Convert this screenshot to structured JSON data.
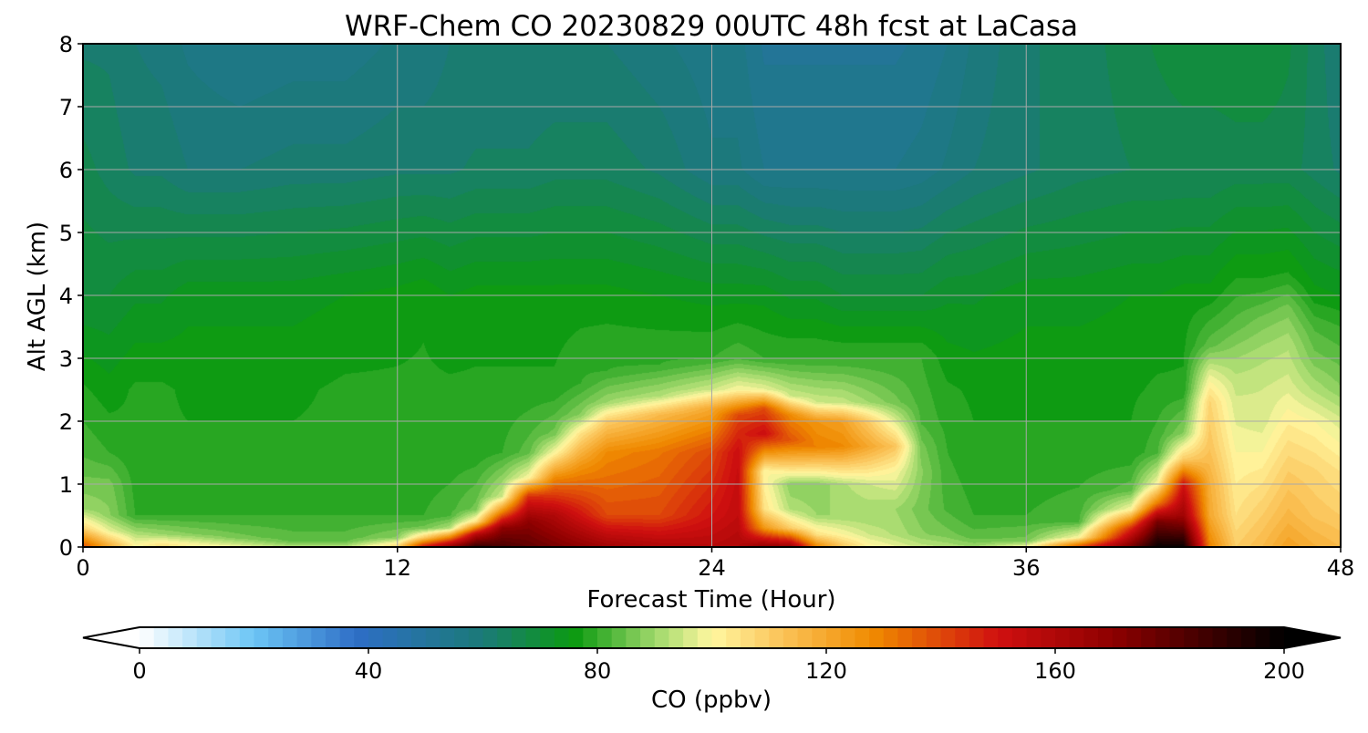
{
  "chart_data": {
    "type": "heatmap",
    "subtype": "filled-contour time-height cross-section",
    "title": "WRF-Chem CO  20230829 00UTC 48h fcst at LaCasa",
    "xlabel": "Forecast Time (Hour)",
    "ylabel": "Alt AGL (km)",
    "xlim": [
      0,
      48
    ],
    "ylim": [
      0,
      8
    ],
    "xticks": [
      0,
      12,
      24,
      36,
      48
    ],
    "yticks": [
      0,
      1,
      2,
      3,
      4,
      5,
      6,
      7,
      8
    ],
    "grid": true,
    "colorbar": {
      "label": "CO  (ppbv)",
      "min": 0,
      "max": 200,
      "ticks": [
        0,
        40,
        80,
        120,
        160,
        200
      ],
      "extend": "both",
      "orientation": "horizontal",
      "placement": "bottom",
      "stops": [
        {
          "v": 0,
          "c": "#ffffff"
        },
        {
          "v": 20,
          "c": "#6cc5f5"
        },
        {
          "v": 38,
          "c": "#2e6ec6"
        },
        {
          "v": 60,
          "c": "#1b7a78"
        },
        {
          "v": 76,
          "c": "#0b9a10"
        },
        {
          "v": 90,
          "c": "#9ed86a"
        },
        {
          "v": 100,
          "c": "#fff7a0"
        },
        {
          "v": 112,
          "c": "#fbc45a"
        },
        {
          "v": 128,
          "c": "#f08b00"
        },
        {
          "v": 150,
          "c": "#d01010"
        },
        {
          "v": 170,
          "c": "#8e0000"
        },
        {
          "v": 190,
          "c": "#2e0000"
        },
        {
          "v": 200,
          "c": "#000000"
        }
      ]
    },
    "sample_hours": [
      0,
      1,
      2,
      3,
      4,
      6,
      8,
      10,
      12,
      13,
      14,
      15,
      16,
      17,
      18,
      19,
      20,
      22,
      24,
      25,
      26,
      27,
      28,
      29,
      30,
      31,
      32,
      33,
      34,
      36,
      38,
      40,
      41,
      42,
      43,
      44,
      45,
      46,
      47,
      48
    ],
    "profiles": [
      {
        "h": 0,
        "z": [
          0,
          0.3,
          0.6,
          1.0,
          1.5,
          2.5,
          4,
          6,
          8
        ],
        "co": [
          140,
          108,
          90,
          86,
          82,
          78,
          70,
          66,
          62
        ]
      },
      {
        "h": 1,
        "z": [
          0,
          0.25,
          0.5,
          1.0,
          1.5,
          2.5,
          4,
          6,
          8
        ],
        "co": [
          120,
          98,
          88,
          86,
          80,
          76,
          70,
          64,
          62
        ]
      },
      {
        "h": 2,
        "z": [
          0,
          0.25,
          0.5,
          1.5,
          2.5,
          4,
          6,
          8
        ],
        "co": [
          102,
          90,
          80,
          78,
          78,
          72,
          62,
          60
        ]
      },
      {
        "h": 3,
        "z": [
          0,
          0.2,
          0.5,
          1.5,
          2.5,
          4,
          6,
          8
        ],
        "co": [
          108,
          90,
          80,
          78,
          78,
          72,
          62,
          59
        ]
      },
      {
        "h": 4,
        "z": [
          0,
          0.2,
          0.5,
          1.5,
          2.5,
          4,
          6,
          8
        ],
        "co": [
          104,
          88,
          80,
          78,
          77,
          74,
          60,
          57
        ]
      },
      {
        "h": 6,
        "z": [
          0,
          0.15,
          0.5,
          1.5,
          2.5,
          4,
          6,
          8
        ],
        "co": [
          98,
          86,
          80,
          78,
          77,
          74,
          60,
          55
        ]
      },
      {
        "h": 8,
        "z": [
          0,
          0.1,
          0.5,
          1.5,
          2.5,
          4,
          6,
          8
        ],
        "co": [
          92,
          84,
          80,
          78,
          77,
          74,
          61,
          56
        ]
      },
      {
        "h": 10,
        "z": [
          0,
          0.1,
          0.5,
          1.5,
          2.5,
          4,
          6,
          8
        ],
        "co": [
          92,
          84,
          80,
          78,
          78,
          75,
          61,
          56
        ]
      },
      {
        "h": 12,
        "z": [
          0,
          0.15,
          0.5,
          1.5,
          2.5,
          4,
          6,
          8
        ],
        "co": [
          110,
          88,
          80,
          78,
          78,
          76,
          62,
          58
        ]
      },
      {
        "h": 13,
        "z": [
          0,
          0.15,
          0.3,
          0.5,
          1.5,
          2.5,
          4,
          6,
          8
        ],
        "co": [
          150,
          110,
          86,
          80,
          78,
          78,
          77,
          62,
          58
        ]
      },
      {
        "h": 14,
        "z": [
          0,
          0.15,
          0.3,
          0.5,
          1.5,
          2.5,
          4,
          6,
          8
        ],
        "co": [
          170,
          130,
          92,
          82,
          78,
          78,
          75,
          62,
          60
        ]
      },
      {
        "h": 15,
        "z": [
          0,
          0.2,
          0.4,
          0.6,
          1.5,
          2.5,
          4,
          6,
          8
        ],
        "co": [
          190,
          158,
          105,
          86,
          78,
          78,
          76,
          63,
          60
        ]
      },
      {
        "h": 16,
        "z": [
          0,
          0.3,
          0.55,
          0.8,
          1.5,
          2.5,
          4,
          6,
          8
        ],
        "co": [
          185,
          170,
          130,
          95,
          80,
          78,
          76,
          63,
          60
        ]
      },
      {
        "h": 17,
        "z": [
          0,
          0.4,
          0.8,
          1.1,
          1.5,
          2.5,
          4,
          6,
          8
        ],
        "co": [
          180,
          170,
          145,
          100,
          84,
          78,
          76,
          63,
          60
        ]
      },
      {
        "h": 18,
        "z": [
          0,
          0.5,
          1.1,
          1.5,
          1.8,
          2.5,
          4,
          6,
          8
        ],
        "co": [
          175,
          160,
          128,
          100,
          86,
          78,
          76,
          64,
          60
        ]
      },
      {
        "h": 19,
        "z": [
          0,
          0.5,
          1.3,
          1.8,
          2.1,
          2.6,
          4,
          6,
          8
        ],
        "co": [
          170,
          150,
          125,
          105,
          88,
          80,
          76,
          64,
          60
        ]
      },
      {
        "h": 20,
        "z": [
          0,
          0.5,
          1.5,
          2.0,
          2.3,
          2.8,
          4,
          6,
          8
        ],
        "co": [
          165,
          140,
          128,
          110,
          90,
          80,
          76,
          64,
          60
        ]
      },
      {
        "h": 22,
        "z": [
          0,
          0.5,
          1.5,
          2.1,
          2.4,
          2.9,
          4,
          6,
          8
        ],
        "co": [
          160,
          140,
          132,
          115,
          92,
          80,
          75,
          62,
          58
        ]
      },
      {
        "h": 24,
        "z": [
          0,
          0.5,
          1.5,
          2.2,
          2.5,
          3.0,
          4,
          6,
          8
        ],
        "co": [
          158,
          150,
          140,
          120,
          95,
          80,
          74,
          58,
          56
        ]
      },
      {
        "h": 25,
        "z": [
          0,
          0.5,
          1.5,
          2.1,
          2.5,
          3.0,
          4,
          6,
          8
        ],
        "co": [
          160,
          155,
          152,
          140,
          100,
          82,
          74,
          58,
          56
        ]
      },
      {
        "h": 26,
        "z": [
          0,
          0.3,
          0.6,
          1.2,
          1.8,
          2.2,
          2.5,
          3.0,
          4,
          6,
          8
        ],
        "co": [
          170,
          125,
          105,
          100,
          152,
          140,
          98,
          80,
          74,
          55,
          52
        ]
      },
      {
        "h": 27,
        "z": [
          0,
          0.3,
          0.6,
          1.0,
          1.7,
          2.1,
          2.4,
          3.0,
          4,
          6,
          8
        ],
        "co": [
          168,
          110,
          92,
          88,
          138,
          128,
          95,
          80,
          72,
          55,
          52
        ]
      },
      {
        "h": 28,
        "z": [
          0,
          0.2,
          0.5,
          1.0,
          1.6,
          2.0,
          2.3,
          3.0,
          4,
          6,
          8
        ],
        "co": [
          130,
          105,
          90,
          88,
          130,
          125,
          95,
          80,
          72,
          55,
          52
        ]
      },
      {
        "h": 29,
        "z": [
          0,
          0.2,
          0.5,
          1.0,
          1.6,
          2.0,
          2.3,
          3.0,
          4,
          6,
          8
        ],
        "co": [
          112,
          100,
          90,
          92,
          128,
          122,
          94,
          80,
          70,
          55,
          52
        ]
      },
      {
        "h": 30,
        "z": [
          0,
          0.2,
          0.5,
          1.0,
          1.6,
          2.0,
          2.3,
          3.0,
          4,
          6,
          8
        ],
        "co": [
          102,
          95,
          90,
          95,
          120,
          110,
          90,
          80,
          70,
          55,
          52
        ]
      },
      {
        "h": 31,
        "z": [
          0,
          0.2,
          0.6,
          1.2,
          1.6,
          1.9,
          2.3,
          3.0,
          4,
          6,
          8
        ],
        "co": [
          98,
          92,
          90,
          100,
          112,
          100,
          86,
          80,
          70,
          55,
          52
        ]
      },
      {
        "h": 32,
        "z": [
          0,
          0.2,
          0.6,
          1.2,
          1.6,
          2.0,
          3.0,
          4,
          6,
          8
        ],
        "co": [
          94,
          88,
          86,
          88,
          86,
          82,
          80,
          70,
          56,
          53
        ]
      },
      {
        "h": 33,
        "z": [
          0,
          0.2,
          0.6,
          1.5,
          2.5,
          4,
          6,
          8
        ],
        "co": [
          92,
          86,
          82,
          80,
          78,
          72,
          58,
          55
        ]
      },
      {
        "h": 34,
        "z": [
          0,
          0.15,
          0.5,
          1.5,
          2.5,
          4,
          6,
          8
        ],
        "co": [
          90,
          84,
          80,
          78,
          77,
          72,
          60,
          58
        ]
      },
      {
        "h": 36,
        "z": [
          0,
          0.1,
          0.5,
          1.5,
          2.5,
          4,
          6,
          8
        ],
        "co": [
          100,
          86,
          80,
          78,
          77,
          74,
          62,
          62
        ]
      },
      {
        "h": 38,
        "z": [
          0,
          0.15,
          0.4,
          1.5,
          2.5,
          4,
          6,
          8
        ],
        "co": [
          140,
          100,
          82,
          78,
          77,
          74,
          64,
          64
        ]
      },
      {
        "h": 40,
        "z": [
          0,
          0.3,
          0.6,
          0.9,
          1.5,
          2.5,
          4,
          6,
          8
        ],
        "co": [
          175,
          145,
          100,
          84,
          78,
          77,
          75,
          65,
          66
        ]
      },
      {
        "h": 41,
        "z": [
          0,
          0.4,
          0.7,
          1.0,
          1.5,
          2.5,
          4,
          6,
          8
        ],
        "co": [
          198,
          175,
          130,
          100,
          82,
          78,
          75,
          65,
          68
        ]
      },
      {
        "h": 42,
        "z": [
          0,
          0.5,
          1.0,
          1.4,
          1.8,
          2.5,
          4,
          6,
          8
        ],
        "co": [
          198,
          165,
          150,
          110,
          88,
          78,
          76,
          65,
          70
        ]
      },
      {
        "h": 43,
        "z": [
          0,
          0.5,
          1.0,
          1.6,
          2.3,
          2.8,
          3.2,
          4,
          6,
          8
        ],
        "co": [
          130,
          120,
          118,
          112,
          108,
          96,
          84,
          76,
          65,
          70
        ]
      },
      {
        "h": 44,
        "z": [
          0,
          0.5,
          1.5,
          2.2,
          2.6,
          3.0,
          3.5,
          4.2,
          6,
          8
        ],
        "co": [
          110,
          105,
          100,
          96,
          94,
          90,
          84,
          78,
          66,
          70
        ]
      },
      {
        "h": 45,
        "z": [
          0,
          0.5,
          1.5,
          2.0,
          2.5,
          3.0,
          3.6,
          4.2,
          6,
          8
        ],
        "co": [
          115,
          110,
          100,
          96,
          95,
          92,
          86,
          78,
          66,
          70
        ]
      },
      {
        "h": 46,
        "z": [
          0,
          0.5,
          1.2,
          2.0,
          2.6,
          3.2,
          3.8,
          4.3,
          6,
          8
        ],
        "co": [
          122,
          116,
          110,
          102,
          96,
          92,
          86,
          78,
          66,
          68
        ]
      },
      {
        "h": 47,
        "z": [
          0,
          0.5,
          1.2,
          2.0,
          2.5,
          3.0,
          3.5,
          4.0,
          6,
          8
        ],
        "co": [
          118,
          112,
          108,
          100,
          92,
          86,
          82,
          76,
          64,
          64
        ]
      },
      {
        "h": 48,
        "z": [
          0,
          0.5,
          1.2,
          2.0,
          2.5,
          3.0,
          3.5,
          4.0,
          6,
          8
        ],
        "co": [
          115,
          110,
          105,
          96,
          88,
          84,
          80,
          75,
          62,
          60
        ]
      }
    ]
  }
}
